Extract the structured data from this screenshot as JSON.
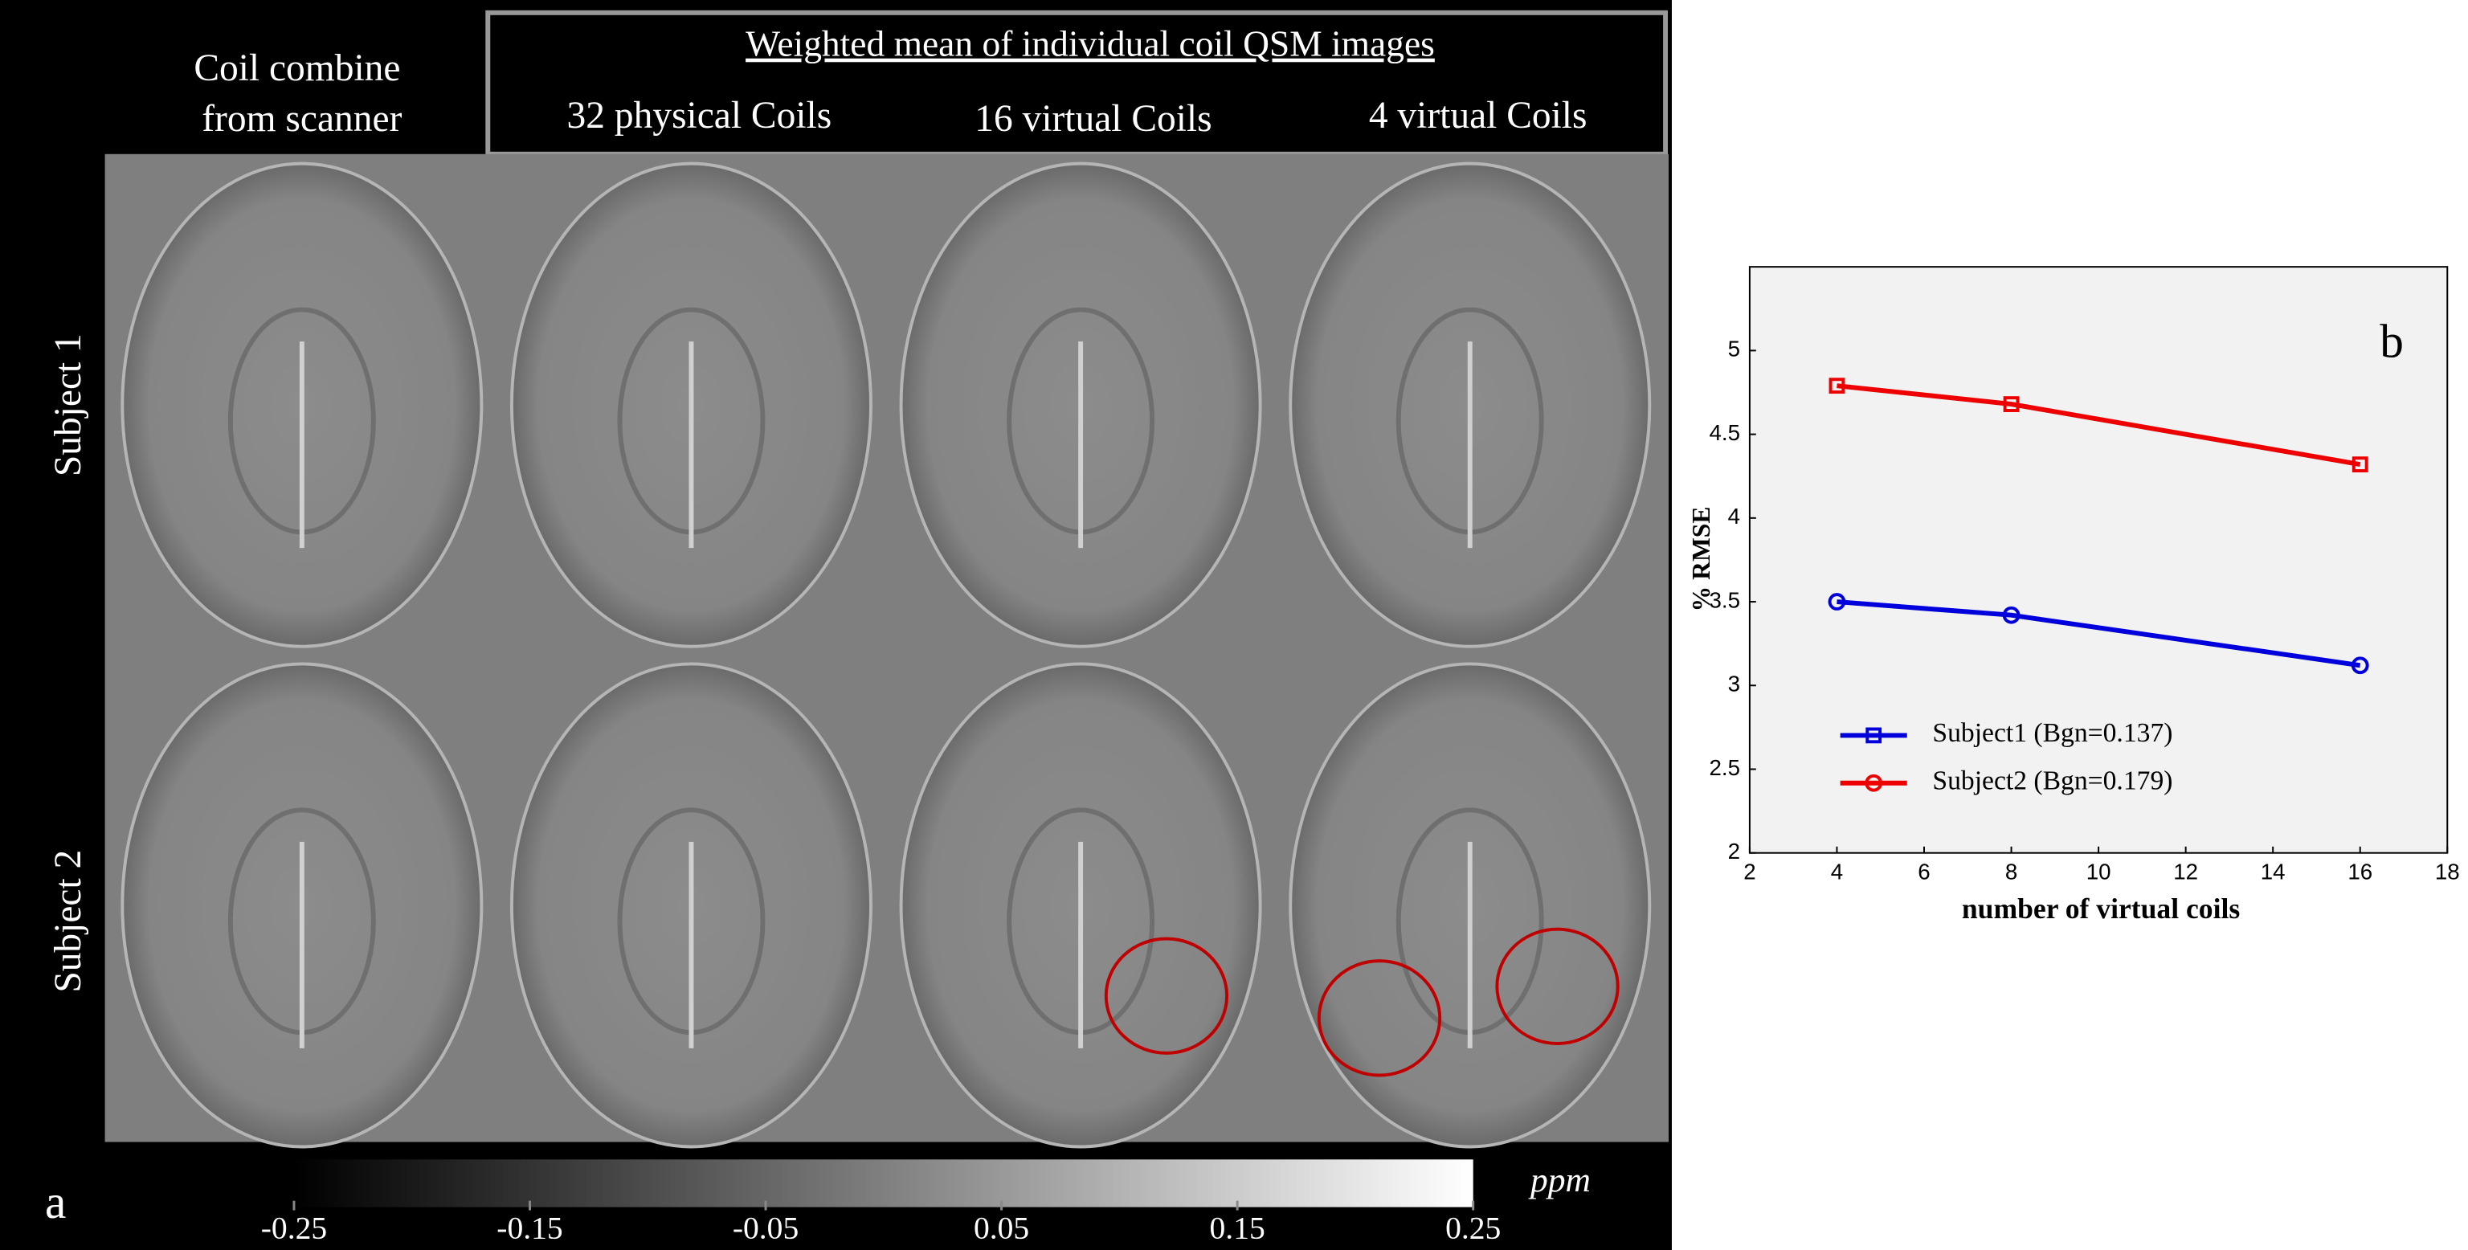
{
  "panel_a": {
    "label": "a",
    "left_header": [
      "Coil combine",
      "from scanner"
    ],
    "group_header": "Weighted mean of individual coil QSM images",
    "columns": [
      "32 physical Coils",
      "16 virtual Coils",
      "4 virtual Coils"
    ],
    "rows": [
      "Subject 1",
      "Subject 2"
    ],
    "colorbar": {
      "unit": "ppm",
      "lim": [
        -0.25,
        0.25
      ],
      "ticks": [
        -0.25,
        -0.15,
        -0.05,
        0.05,
        0.15,
        0.25
      ]
    }
  },
  "chart_data": {
    "type": "line",
    "label": "b",
    "x_label": "number of virtual coils",
    "y_label": "% RMSE",
    "x": [
      4,
      8,
      16
    ],
    "series": [
      {
        "name": "Subject1 (Bgn=0.137)",
        "color": "#0000dd",
        "marker": "circle",
        "legend_marker": "square",
        "values": [
          3.5,
          3.42,
          3.12
        ]
      },
      {
        "name": "Subject2 (Bgn=0.179)",
        "color": "#ee0000",
        "marker": "square",
        "legend_marker": "circle",
        "values": [
          4.79,
          4.68,
          4.32
        ]
      }
    ],
    "xlim": [
      2,
      18
    ],
    "xticks": [
      2,
      4,
      6,
      8,
      10,
      12,
      14,
      16,
      18
    ],
    "ylim": [
      2,
      5.5
    ],
    "yticks": [
      2,
      2.5,
      3,
      3.5,
      4,
      4.5,
      5
    ]
  }
}
